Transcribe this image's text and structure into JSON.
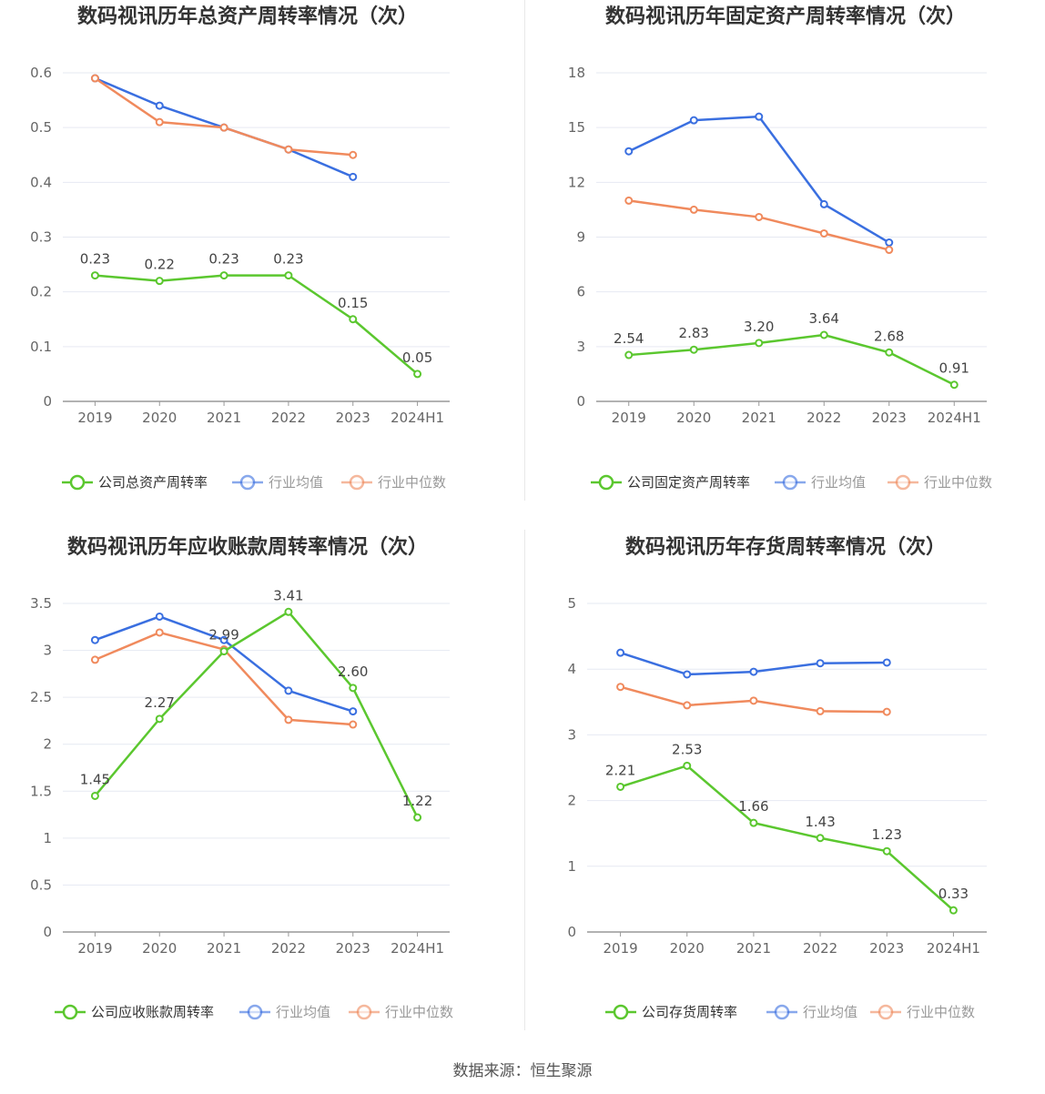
{
  "source": "数据来源：恒生聚源",
  "colors": {
    "company": "#5bc72f",
    "avg": "#3a6fe0",
    "median": "#f08a5d",
    "grid": "#e6e9f2",
    "axis": "#999999"
  },
  "legend_labels": {
    "avg": "行业均值",
    "median": "行业中位数"
  },
  "chart_data": [
    {
      "type": "line",
      "title": "数码视讯历年总资产周转率情况（次）",
      "categories": [
        "2019",
        "2020",
        "2021",
        "2022",
        "2023",
        "2024H1"
      ],
      "ylim": [
        0,
        0.6
      ],
      "yticks": [
        0,
        0.1,
        0.2,
        0.3,
        0.4,
        0.5,
        0.6
      ],
      "ytick_labels": [
        "0",
        "0.1",
        "0.2",
        "0.3",
        "0.4",
        "0.5",
        "0.6"
      ],
      "grid": true,
      "legend_position": "bottom",
      "series": [
        {
          "name": "公司总资产周转率",
          "role": "company",
          "values": [
            0.23,
            0.22,
            0.23,
            0.23,
            0.15,
            0.05
          ],
          "labels": [
            "0.23",
            "0.22",
            "0.23",
            "0.23",
            "0.15",
            "0.05"
          ]
        },
        {
          "name": "行业均值",
          "role": "avg",
          "values": [
            0.59,
            0.54,
            0.5,
            0.46,
            0.41,
            null
          ]
        },
        {
          "name": "行业中位数",
          "role": "median",
          "values": [
            0.59,
            0.51,
            0.5,
            0.46,
            0.45,
            null
          ]
        }
      ]
    },
    {
      "type": "line",
      "title": "数码视讯历年固定资产周转率情况（次）",
      "categories": [
        "2019",
        "2020",
        "2021",
        "2022",
        "2023",
        "2024H1"
      ],
      "ylim": [
        0,
        18
      ],
      "yticks": [
        0,
        3,
        6,
        9,
        12,
        15,
        18
      ],
      "ytick_labels": [
        "0",
        "3",
        "6",
        "9",
        "12",
        "15",
        "18"
      ],
      "grid": true,
      "legend_position": "bottom",
      "series": [
        {
          "name": "公司固定资产周转率",
          "role": "company",
          "values": [
            2.54,
            2.83,
            3.2,
            3.64,
            2.68,
            0.91
          ],
          "labels": [
            "2.54",
            "2.83",
            "3.20",
            "3.64",
            "2.68",
            "0.91"
          ]
        },
        {
          "name": "行业均值",
          "role": "avg",
          "values": [
            13.7,
            15.4,
            15.6,
            10.8,
            8.7,
            null
          ]
        },
        {
          "name": "行业中位数",
          "role": "median",
          "values": [
            11.0,
            10.5,
            10.1,
            9.2,
            8.3,
            null
          ]
        }
      ]
    },
    {
      "type": "line",
      "title": "数码视讯历年应收账款周转率情况（次）",
      "categories": [
        "2019",
        "2020",
        "2021",
        "2022",
        "2023",
        "2024H1"
      ],
      "ylim": [
        0,
        3.5
      ],
      "yticks": [
        0,
        0.5,
        1,
        1.5,
        2,
        2.5,
        3,
        3.5
      ],
      "ytick_labels": [
        "0",
        "0.5",
        "1",
        "1.5",
        "2",
        "2.5",
        "3",
        "3.5"
      ],
      "grid": true,
      "legend_position": "bottom",
      "series": [
        {
          "name": "公司应收账款周转率",
          "role": "company",
          "values": [
            1.45,
            2.27,
            2.99,
            3.41,
            2.6,
            1.22
          ],
          "labels": [
            "1.45",
            "2.27",
            "2.99",
            "3.41",
            "2.60",
            "1.22"
          ]
        },
        {
          "name": "行业均值",
          "role": "avg",
          "values": [
            3.11,
            3.36,
            3.11,
            2.57,
            2.35,
            null
          ]
        },
        {
          "name": "行业中位数",
          "role": "median",
          "values": [
            2.9,
            3.19,
            3.01,
            2.26,
            2.21,
            null
          ]
        }
      ]
    },
    {
      "type": "line",
      "title": "数码视讯历年存货周转率情况（次）",
      "categories": [
        "2019",
        "2020",
        "2021",
        "2022",
        "2023",
        "2024H1"
      ],
      "ylim": [
        0,
        5
      ],
      "yticks": [
        0,
        1,
        2,
        3,
        4,
        5
      ],
      "ytick_labels": [
        "0",
        "1",
        "2",
        "3",
        "4",
        "5"
      ],
      "grid": true,
      "legend_position": "bottom",
      "series": [
        {
          "name": "公司存货周转率",
          "role": "company",
          "values": [
            2.21,
            2.53,
            1.66,
            1.43,
            1.23,
            0.33
          ],
          "labels": [
            "2.21",
            "2.53",
            "1.66",
            "1.43",
            "1.23",
            "0.33"
          ]
        },
        {
          "name": "行业均值",
          "role": "avg",
          "values": [
            4.25,
            3.92,
            3.96,
            4.09,
            4.1,
            null
          ]
        },
        {
          "name": "行业中位数",
          "role": "median",
          "values": [
            3.73,
            3.45,
            3.52,
            3.36,
            3.35,
            null
          ]
        }
      ]
    }
  ]
}
